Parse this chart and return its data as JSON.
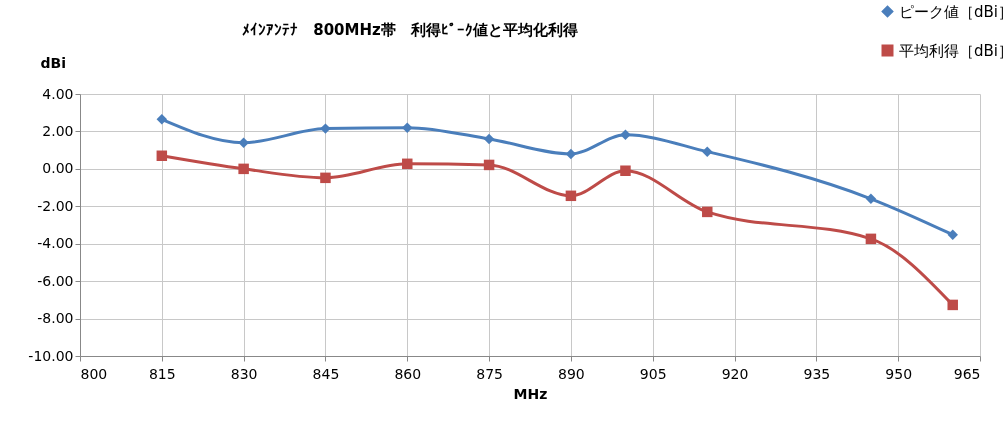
{
  "chart_data": {
    "type": "line",
    "title": "ﾒｲﾝｱﾝﾃﾅ　800MHz帯　利得ﾋﾟｰｸ値と平均化利得",
    "xlabel": "MHz",
    "ylabel": "dBi",
    "x": [
      815,
      830,
      845,
      860,
      875,
      890,
      900,
      915,
      945,
      960
    ],
    "series": [
      {
        "name": "ピーク値［dBi］",
        "color": "#4a7ebb",
        "marker": "diamond",
        "values": [
          2.65,
          1.4,
          2.15,
          2.2,
          1.6,
          0.8,
          1.82,
          0.92,
          -1.6,
          -3.52
        ]
      },
      {
        "name": "平均利得［dBi］",
        "color": "#be4b48",
        "marker": "square",
        "values": [
          0.7,
          0.0,
          -0.48,
          0.27,
          0.21,
          -1.44,
          -0.1,
          -2.3,
          -3.74,
          -7.27
        ]
      }
    ],
    "xlim": [
      800,
      965
    ],
    "xticks": [
      800,
      815,
      830,
      845,
      860,
      875,
      890,
      905,
      920,
      935,
      950,
      965
    ],
    "ylim": [
      -10,
      4
    ],
    "yticks": [
      {
        "value": 4,
        "label": "4.00"
      },
      {
        "value": 2,
        "label": "2.00"
      },
      {
        "value": 0,
        "label": "0.00"
      },
      {
        "value": -2,
        "label": "-2.00"
      },
      {
        "value": -4,
        "label": "-4.00"
      },
      {
        "value": -6,
        "label": "-6.00"
      },
      {
        "value": -8,
        "label": "-8.00"
      },
      {
        "value": -10,
        "label": "-10.00"
      }
    ],
    "grid": true,
    "legend": "top right"
  }
}
